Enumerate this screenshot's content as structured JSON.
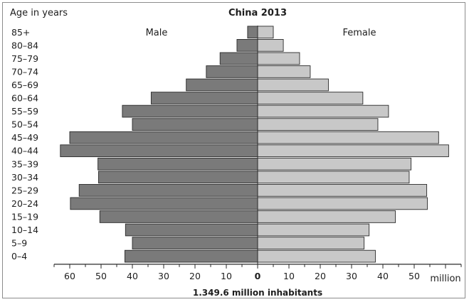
{
  "chart_data": {
    "type": "bar",
    "orientation": "horizontal",
    "title": "China 2013",
    "y_axis_title": "Age in years",
    "x_unit": "million",
    "footer": "1.349.6 million inhabitants",
    "xlim": [
      0,
      65
    ],
    "x_ticks": [
      0,
      10,
      20,
      30,
      40,
      50,
      60
    ],
    "categories": [
      "85+",
      "80–84",
      "75–79",
      "70–74",
      "65–69",
      "60–64",
      "55–59",
      "50–54",
      "45–49",
      "40–44",
      "35–39",
      "30–34",
      "25–29",
      "20–24",
      "15–19",
      "10–14",
      "5–9",
      "0–4"
    ],
    "series": [
      {
        "name": "Male",
        "side": "left",
        "color": "#7a7a7a",
        "values": [
          3.2,
          6.6,
          12.0,
          16.4,
          22.8,
          34.0,
          43.2,
          40.0,
          60.0,
          63.0,
          51.0,
          50.8,
          57.0,
          59.8,
          50.4,
          42.2,
          40.0,
          42.4
        ]
      },
      {
        "name": "Female",
        "side": "right",
        "color": "#c8c8c8",
        "values": [
          5.0,
          8.2,
          13.4,
          16.8,
          22.6,
          33.6,
          41.8,
          38.4,
          57.8,
          61.0,
          49.0,
          48.4,
          54.0,
          54.2,
          44.0,
          35.6,
          34.0,
          37.6
        ]
      }
    ]
  }
}
